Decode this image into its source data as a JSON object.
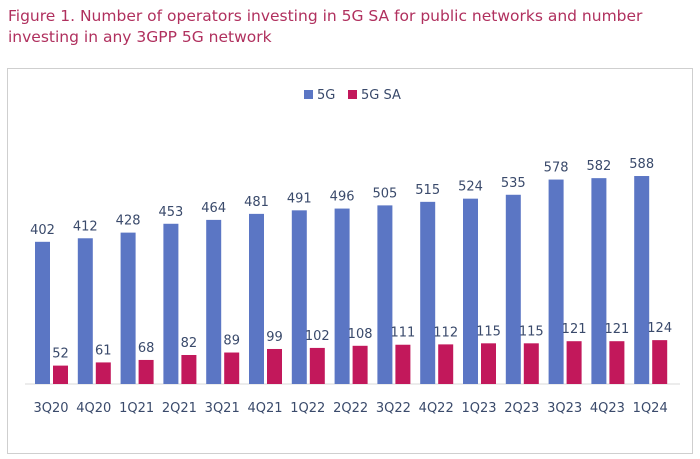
{
  "figure_title": "Figure 1. Number of operators investing in 5G SA for public networks and number investing in any 3GPP 5G network",
  "colors": {
    "title": "#b0305e",
    "series_5g": "#5b76c4",
    "series_5gsa": "#c2185b",
    "text": "#3a4a6b"
  },
  "chart_data": {
    "type": "bar",
    "title": "Figure 1. Number of operators investing in 5G SA for public networks and number investing in any 3GPP 5G network",
    "categories": [
      "3Q20",
      "4Q20",
      "1Q21",
      "2Q21",
      "3Q21",
      "4Q21",
      "1Q22",
      "2Q22",
      "3Q22",
      "4Q22",
      "1Q23",
      "2Q23",
      "3Q23",
      "4Q23",
      "1Q24"
    ],
    "series": [
      {
        "name": "5G",
        "color": "#5b76c4",
        "values": [
          402,
          412,
          428,
          453,
          464,
          481,
          491,
          496,
          505,
          515,
          524,
          535,
          578,
          582,
          588
        ]
      },
      {
        "name": "5G SA",
        "color": "#c2185b",
        "values": [
          52,
          61,
          68,
          82,
          89,
          99,
          102,
          108,
          111,
          112,
          115,
          115,
          121,
          121,
          124
        ]
      }
    ],
    "xlabel": "",
    "ylabel": "",
    "ylim": [
      0,
      700
    ],
    "legend": "top-center",
    "grid": false
  }
}
